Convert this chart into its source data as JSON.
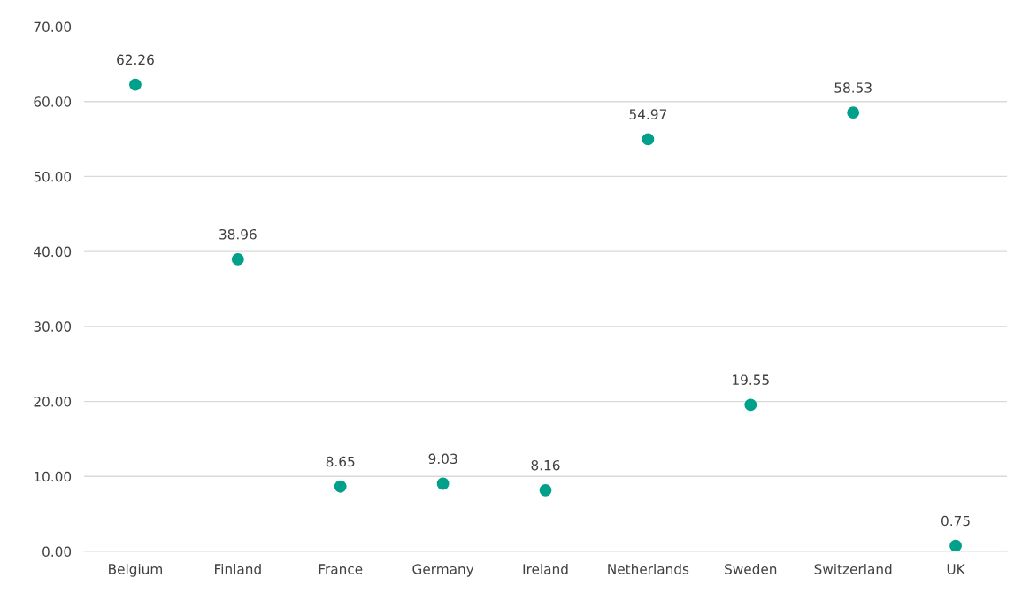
{
  "chart_data": {
    "type": "scatter",
    "categories": [
      "Belgium",
      "Finland",
      "France",
      "Germany",
      "Ireland",
      "Netherlands",
      "Sweden",
      "Switzerland",
      "UK"
    ],
    "values": [
      62.26,
      38.96,
      8.65,
      9.03,
      8.16,
      54.97,
      19.55,
      58.53,
      0.75
    ],
    "color": "#00a08a",
    "marker": "circle",
    "data_labels": true,
    "grid": "y",
    "legend": false,
    "ylim": [
      0,
      70
    ],
    "yticks": [
      {
        "value": 0,
        "label": "0.00"
      },
      {
        "value": 10,
        "label": "10.00"
      },
      {
        "value": 20,
        "label": "20.00"
      },
      {
        "value": 30,
        "label": "30.00"
      },
      {
        "value": 40,
        "label": "40.00"
      },
      {
        "value": 50,
        "label": "50.00"
      },
      {
        "value": 60,
        "label": "60.00"
      },
      {
        "value": 70,
        "label": "70.00"
      }
    ]
  }
}
